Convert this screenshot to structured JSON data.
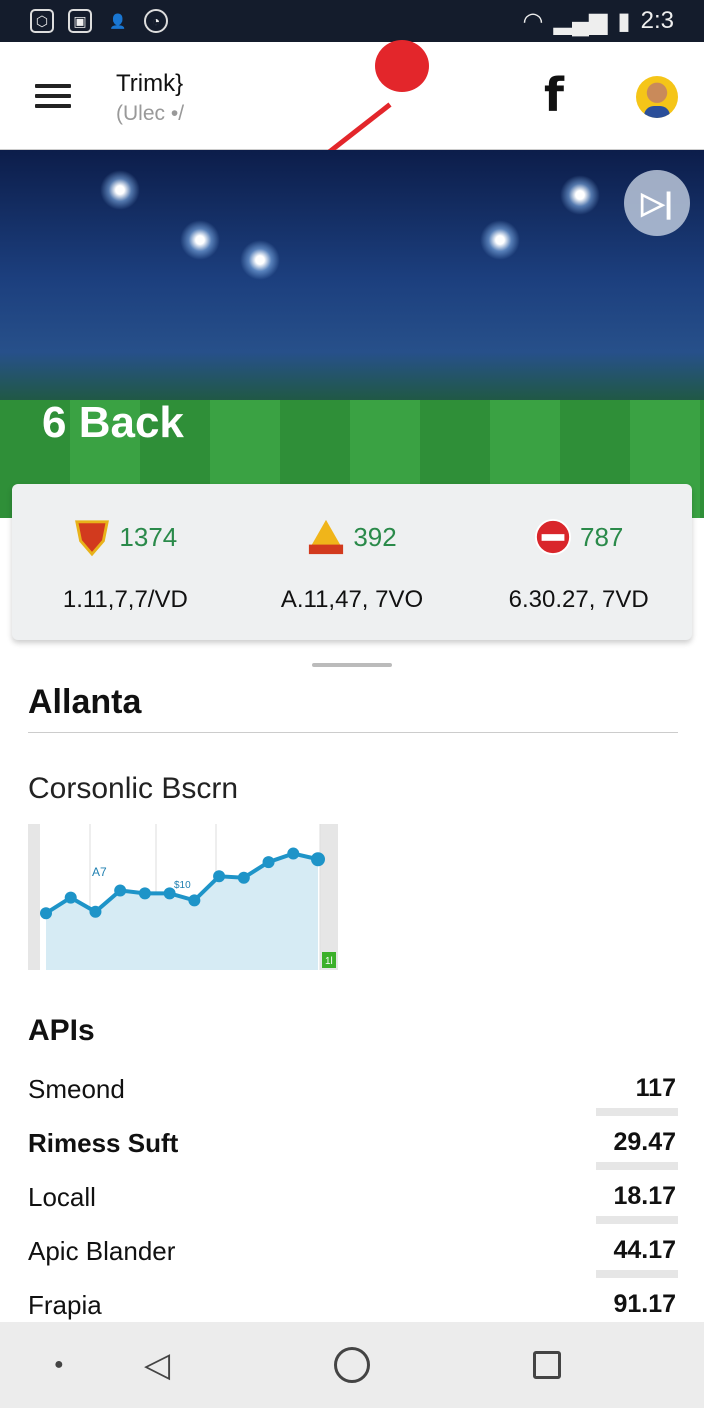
{
  "status_bar": {
    "time": "2:3",
    "icons": [
      "shield-icon",
      "app-icon",
      "person-icon",
      "clock-icon"
    ],
    "right_icons": [
      "wifi-icon",
      "signal-icon",
      "battery-icon"
    ]
  },
  "app_bar": {
    "title": "Trimk}",
    "subtitle": "(Ulec •/",
    "icons": [
      "menu-icon",
      "pin-icon",
      "facebook-icon",
      "avatar"
    ]
  },
  "hero": {
    "back_label": "6 Back",
    "skip_icon": "skip-next-icon"
  },
  "scores": [
    {
      "crest": "shield-crest-icon",
      "count": "1374",
      "line": "1.11,7,7/VD"
    },
    {
      "crest": "triangle-crest-icon",
      "count": "392",
      "line": "A.11,47, 7VO"
    },
    {
      "crest": "round-crest-icon",
      "count": "787",
      "line": "6.30.27, 7VD"
    }
  ],
  "section_title": "Allanta",
  "chart_title": "Corsonlic Bscrn",
  "chart_data": {
    "type": "area",
    "values": [
      40,
      51,
      41,
      56,
      54,
      54,
      49,
      66,
      65,
      76,
      82,
      78
    ],
    "annotations": [
      "A7",
      "$10"
    ],
    "badge": "1l",
    "color": "#1e94c8"
  },
  "apis": {
    "title": "APIs",
    "rows": [
      {
        "label": "Smeond",
        "value": "117",
        "bold": false
      },
      {
        "label": "Rimess Suft",
        "value": "29.47",
        "bold": true
      },
      {
        "label": "Locall",
        "value": "18.17",
        "bold": false
      },
      {
        "label": "Apic Blander",
        "value": "44.17",
        "bold": false
      },
      {
        "label": "Frapia",
        "value": "91.17",
        "bold": false
      }
    ]
  },
  "nav": [
    "dot-icon",
    "back-icon",
    "home-icon",
    "recents-icon"
  ]
}
